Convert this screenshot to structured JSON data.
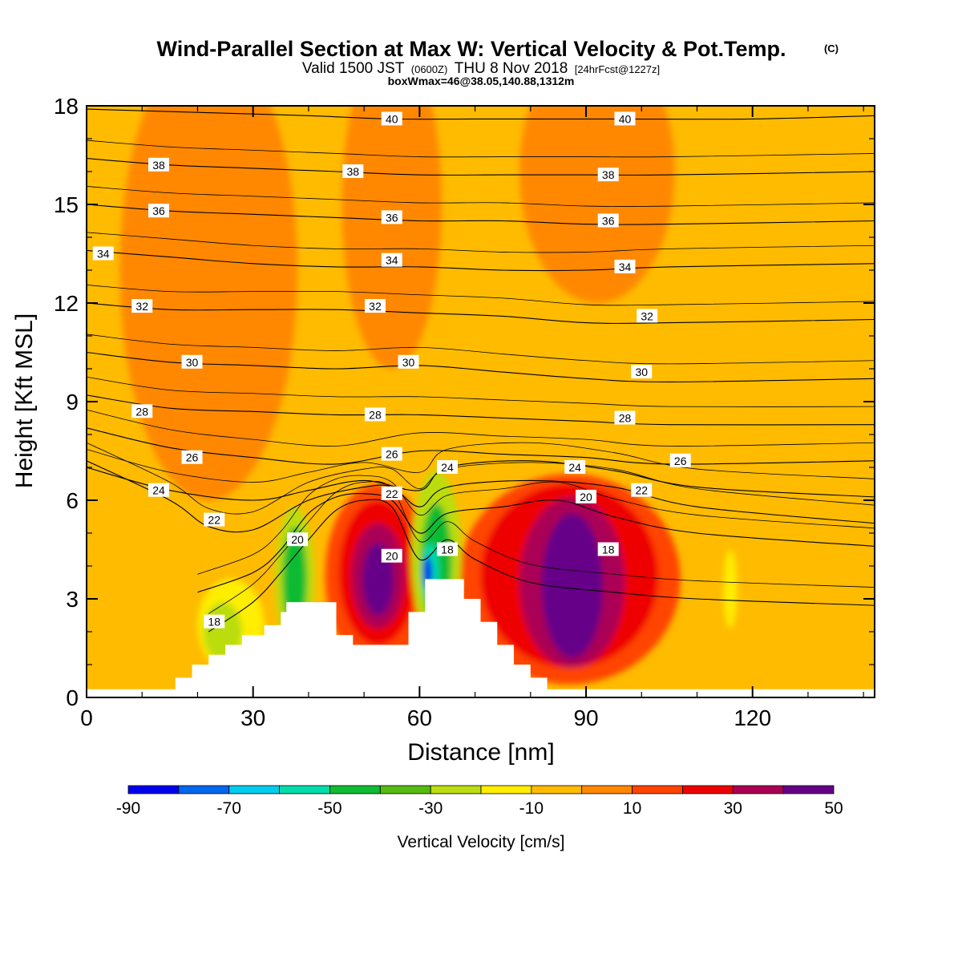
{
  "chart_data": {
    "type": "heatmap",
    "title": {
      "main": "Wind-Parallel Section at Max W: Vertical Velocity & Pot.Temp.",
      "copyright": "(C)",
      "line2_a": "Valid 1500 JST",
      "line2_b": "(0600Z)",
      "line2_c": "THU 8 Nov 2018",
      "line2_d": "[24hrFcst@1227z]",
      "line3": "boxWmax=46@38.05,140.88,1312m"
    },
    "xlabel": "Distance [nm]",
    "ylabel": "Height [Kft MSL]",
    "xlim": [
      0,
      142
    ],
    "ylim": [
      0,
      18
    ],
    "xticks": [
      0,
      30,
      60,
      90,
      120
    ],
    "yticks": [
      0,
      3,
      6,
      9,
      12,
      15,
      18
    ],
    "colorbar": {
      "title": "Vertical Velocity [cm/s]",
      "levels": [
        -90,
        -80,
        -70,
        -60,
        -50,
        -40,
        -30,
        -20,
        -10,
        0,
        10,
        20,
        30,
        40,
        50
      ],
      "tick_labels": [
        "-90",
        "-70",
        "-50",
        "-30",
        "-10",
        "10",
        "30",
        "50"
      ],
      "tick_values": [
        -90,
        -70,
        -50,
        -30,
        -10,
        10,
        30,
        50
      ],
      "colors": [
        "#0000ee",
        "#0066ee",
        "#00ccee",
        "#00ddaa",
        "#11bb33",
        "#55bb11",
        "#bbdd11",
        "#ffee00",
        "#ffbb00",
        "#ff8800",
        "#ff4400",
        "#ee0000",
        "#aa0055",
        "#660088"
      ]
    },
    "terrain_profile": [
      [
        16,
        0
      ],
      [
        16,
        0.6
      ],
      [
        19,
        0.6
      ],
      [
        19,
        1.0
      ],
      [
        22,
        1.0
      ],
      [
        22,
        1.3
      ],
      [
        25,
        1.3
      ],
      [
        25,
        1.6
      ],
      [
        28,
        1.6
      ],
      [
        28,
        1.9
      ],
      [
        32,
        1.9
      ],
      [
        32,
        2.2
      ],
      [
        35,
        2.2
      ],
      [
        35,
        2.6
      ],
      [
        36,
        2.6
      ],
      [
        36,
        2.9
      ],
      [
        45,
        2.9
      ],
      [
        45,
        1.9
      ],
      [
        48,
        1.9
      ],
      [
        48,
        1.6
      ],
      [
        58,
        1.6
      ],
      [
        58,
        2.6
      ],
      [
        61,
        2.6
      ],
      [
        61,
        3.6
      ],
      [
        68,
        3.6
      ],
      [
        68,
        3.0
      ],
      [
        71,
        3.0
      ],
      [
        71,
        2.3
      ],
      [
        74,
        2.3
      ],
      [
        74,
        1.6
      ],
      [
        77,
        1.6
      ],
      [
        77,
        1.0
      ],
      [
        80,
        1.0
      ],
      [
        80,
        0.6
      ],
      [
        83,
        0.6
      ],
      [
        83,
        0
      ]
    ],
    "w_features": [
      {
        "x": 52.5,
        "z": 3.7,
        "rx": 9.5,
        "rz": 2.8,
        "value": 10
      },
      {
        "x": 52.5,
        "z": 3.8,
        "rx": 7.0,
        "rz": 2.2,
        "value": 20
      },
      {
        "x": 52.5,
        "z": 3.7,
        "rx": 4.8,
        "rz": 1.6,
        "value": 30
      },
      {
        "x": 52.5,
        "z": 3.6,
        "rx": 2.8,
        "rz": 1.1,
        "value": 40
      },
      {
        "x": 52.0,
        "z": 3.7,
        "rx": 1.5,
        "rz": 0.6,
        "value": 46
      },
      {
        "x": 87.0,
        "z": 3.6,
        "rx": 20.0,
        "rz": 3.2,
        "value": 10
      },
      {
        "x": 87.0,
        "z": 3.7,
        "rx": 16.0,
        "rz": 2.8,
        "value": 20
      },
      {
        "x": 87.5,
        "z": 3.5,
        "rx": 9.5,
        "rz": 2.6,
        "value": 30
      },
      {
        "x": 87.5,
        "z": 3.4,
        "rx": 5.5,
        "rz": 2.2,
        "value": 40
      },
      {
        "x": 87.0,
        "z": 3.2,
        "rx": 3.0,
        "rz": 1.6,
        "value": 46
      },
      {
        "x": 37.5,
        "z": 3.6,
        "rx": 3.5,
        "rz": 2.2,
        "value": -30
      },
      {
        "x": 37.5,
        "z": 3.6,
        "rx": 2.2,
        "rz": 1.6,
        "value": -45
      },
      {
        "x": 38.0,
        "z": 3.3,
        "rx": 1.0,
        "rz": 0.6,
        "value": -50
      },
      {
        "x": 26.0,
        "z": 2.2,
        "rx": 6.0,
        "rz": 1.4,
        "value": -20
      },
      {
        "x": 24.5,
        "z": 2.0,
        "rx": 3.5,
        "rz": 0.9,
        "value": -30
      },
      {
        "x": 63.0,
        "z": 4.3,
        "rx": 4.5,
        "rz": 2.6,
        "value": -30
      },
      {
        "x": 63.0,
        "z": 4.1,
        "rx": 2.8,
        "rz": 1.8,
        "value": -45
      },
      {
        "x": 62.0,
        "z": 3.8,
        "rx": 1.5,
        "rz": 0.9,
        "value": -60
      },
      {
        "x": 61.5,
        "z": 3.8,
        "rx": 0.8,
        "rz": 0.5,
        "value": -85
      },
      {
        "x": 116.0,
        "z": 3.3,
        "rx": 1.2,
        "rz": 1.2,
        "value": -20
      },
      {
        "x": 22.0,
        "z": 13.0,
        "rx": 16.0,
        "rz": 7.0,
        "value": 5
      },
      {
        "x": 55.0,
        "z": 15.0,
        "rx": 9.0,
        "rz": 5.0,
        "value": 5
      },
      {
        "x": 92.0,
        "z": 16.0,
        "rx": 14.0,
        "rz": 4.0,
        "value": 5
      }
    ],
    "theta_contours": [
      {
        "level": 18,
        "points": [
          [
            22,
            2.0
          ],
          [
            30,
            2.9
          ],
          [
            35,
            3.8
          ],
          [
            40,
            4.8
          ],
          [
            45,
            5.7
          ],
          [
            50,
            6.0
          ],
          [
            55,
            5.8
          ],
          [
            60,
            4.2
          ],
          [
            65,
            4.8
          ],
          [
            70,
            4.2
          ],
          [
            80,
            3.5
          ],
          [
            95,
            3.2
          ],
          [
            110,
            3.0
          ],
          [
            142,
            2.8
          ]
        ],
        "label_at": [
          [
            23,
            2.3
          ],
          [
            65,
            4.5
          ],
          [
            94,
            4.5
          ]
        ]
      },
      {
        "level": 20,
        "points": [
          [
            20,
            3.2
          ],
          [
            30,
            3.8
          ],
          [
            35,
            4.5
          ],
          [
            40,
            5.6
          ],
          [
            45,
            6.1
          ],
          [
            50,
            6.2
          ],
          [
            55,
            6.0
          ],
          [
            60,
            5.0
          ],
          [
            65,
            5.6
          ],
          [
            75,
            5.8
          ],
          [
            85,
            6.0
          ],
          [
            95,
            5.5
          ],
          [
            110,
            5.0
          ],
          [
            142,
            4.6
          ]
        ],
        "label_at": [
          [
            38,
            4.8
          ],
          [
            55,
            4.3
          ],
          [
            90,
            6.1
          ]
        ]
      },
      {
        "level": 22,
        "points": [
          [
            0,
            7.2
          ],
          [
            15,
            6.0
          ],
          [
            22,
            5.2
          ],
          [
            30,
            5.1
          ],
          [
            40,
            6.0
          ],
          [
            50,
            6.4
          ],
          [
            55,
            6.4
          ],
          [
            60,
            5.8
          ],
          [
            65,
            6.4
          ],
          [
            80,
            6.6
          ],
          [
            95,
            6.4
          ],
          [
            110,
            5.8
          ],
          [
            142,
            5.3
          ]
        ],
        "label_at": [
          [
            23,
            5.4
          ],
          [
            55,
            6.2
          ],
          [
            100,
            6.3
          ]
        ]
      },
      {
        "level": 24,
        "points": [
          [
            0,
            7.0
          ],
          [
            15,
            6.3
          ],
          [
            30,
            6.0
          ],
          [
            40,
            6.3
          ],
          [
            50,
            6.6
          ],
          [
            60,
            6.3
          ],
          [
            65,
            7.0
          ],
          [
            80,
            7.2
          ],
          [
            95,
            6.9
          ],
          [
            110,
            6.4
          ],
          [
            142,
            6.1
          ]
        ],
        "label_at": [
          [
            13,
            6.3
          ],
          [
            65,
            7.0
          ],
          [
            88,
            7.0
          ]
        ]
      },
      {
        "level": 26,
        "points": [
          [
            0,
            8.2
          ],
          [
            15,
            7.6
          ],
          [
            30,
            7.3
          ],
          [
            45,
            7.1
          ],
          [
            60,
            7.5
          ],
          [
            75,
            7.4
          ],
          [
            90,
            7.3
          ],
          [
            105,
            7.1
          ],
          [
            142,
            7.2
          ]
        ],
        "label_at": [
          [
            19,
            7.3
          ],
          [
            55,
            7.4
          ],
          [
            107,
            7.2
          ]
        ]
      },
      {
        "level": 28,
        "points": [
          [
            0,
            9.2
          ],
          [
            15,
            8.8
          ],
          [
            30,
            8.7
          ],
          [
            45,
            8.6
          ],
          [
            60,
            8.6
          ],
          [
            75,
            8.5
          ],
          [
            90,
            8.4
          ],
          [
            105,
            8.3
          ],
          [
            142,
            8.3
          ]
        ],
        "label_at": [
          [
            10,
            8.7
          ],
          [
            52,
            8.6
          ],
          [
            97,
            8.5
          ]
        ]
      },
      {
        "level": 30,
        "points": [
          [
            0,
            10.5
          ],
          [
            15,
            10.2
          ],
          [
            30,
            10.1
          ],
          [
            45,
            10.0
          ],
          [
            60,
            10.1
          ],
          [
            75,
            9.9
          ],
          [
            90,
            9.7
          ],
          [
            105,
            9.6
          ],
          [
            142,
            9.7
          ]
        ],
        "label_at": [
          [
            19,
            10.2
          ],
          [
            58,
            10.2
          ],
          [
            100,
            9.9
          ]
        ]
      },
      {
        "level": 32,
        "points": [
          [
            0,
            12.0
          ],
          [
            15,
            11.8
          ],
          [
            30,
            11.8
          ],
          [
            45,
            11.8
          ],
          [
            60,
            11.7
          ],
          [
            75,
            11.6
          ],
          [
            90,
            11.4
          ],
          [
            105,
            11.4
          ],
          [
            142,
            11.5
          ]
        ],
        "label_at": [
          [
            10,
            11.9
          ],
          [
            52,
            11.9
          ],
          [
            101,
            11.6
          ]
        ]
      },
      {
        "level": 34,
        "points": [
          [
            0,
            13.6
          ],
          [
            15,
            13.4
          ],
          [
            30,
            13.2
          ],
          [
            45,
            13.1
          ],
          [
            60,
            13.1
          ],
          [
            75,
            13.0
          ],
          [
            90,
            13.0
          ],
          [
            105,
            13.1
          ],
          [
            142,
            13.2
          ]
        ],
        "label_at": [
          [
            3,
            13.5
          ],
          [
            55,
            13.3
          ],
          [
            97,
            13.1
          ]
        ]
      },
      {
        "level": 36,
        "points": [
          [
            0,
            15.0
          ],
          [
            15,
            14.8
          ],
          [
            30,
            14.7
          ],
          [
            45,
            14.6
          ],
          [
            60,
            14.5
          ],
          [
            75,
            14.5
          ],
          [
            90,
            14.4
          ],
          [
            105,
            14.4
          ],
          [
            142,
            14.5
          ]
        ],
        "label_at": [
          [
            13,
            14.8
          ],
          [
            55,
            14.6
          ],
          [
            94,
            14.5
          ]
        ]
      },
      {
        "level": 38,
        "points": [
          [
            0,
            16.4
          ],
          [
            15,
            16.2
          ],
          [
            30,
            16.1
          ],
          [
            45,
            16.0
          ],
          [
            60,
            15.9
          ],
          [
            75,
            15.9
          ],
          [
            90,
            15.9
          ],
          [
            105,
            15.9
          ],
          [
            142,
            16.0
          ]
        ],
        "label_at": [
          [
            13,
            16.2
          ],
          [
            48,
            16.0
          ],
          [
            94,
            15.9
          ]
        ]
      },
      {
        "level": 40,
        "points": [
          [
            0,
            17.9
          ],
          [
            20,
            17.8
          ],
          [
            40,
            17.7
          ],
          [
            55,
            17.6
          ],
          [
            70,
            17.6
          ],
          [
            95,
            17.6
          ],
          [
            120,
            17.6
          ],
          [
            142,
            17.7
          ]
        ],
        "label_at": [
          [
            55,
            17.6
          ],
          [
            97,
            17.6
          ]
        ]
      }
    ]
  }
}
